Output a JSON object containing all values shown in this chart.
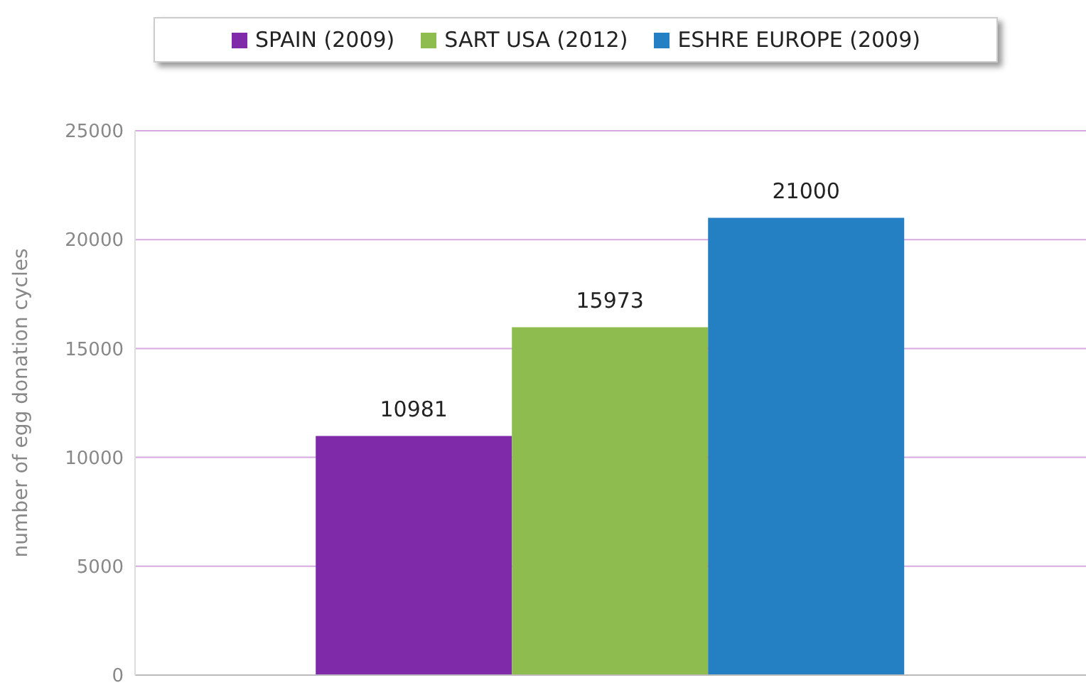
{
  "chart_data": {
    "type": "bar",
    "ylabel": "number of egg donation cycles",
    "categories": [
      null
    ],
    "series": [
      {
        "name": "SPAIN (2009)",
        "color": "#7f2aa8",
        "values": [
          10981
        ]
      },
      {
        "name": "SART USA (2012)",
        "color": "#8fbc4f",
        "values": [
          15973
        ]
      },
      {
        "name": "ESHRE EUROPE (2009)",
        "color": "#2580c3",
        "values": [
          21000
        ]
      }
    ],
    "ylim": [
      0,
      25000
    ],
    "yticks": [
      0,
      5000,
      10000,
      15000,
      20000,
      25000
    ],
    "grid": "y",
    "legend": "top",
    "data_labels": true
  }
}
